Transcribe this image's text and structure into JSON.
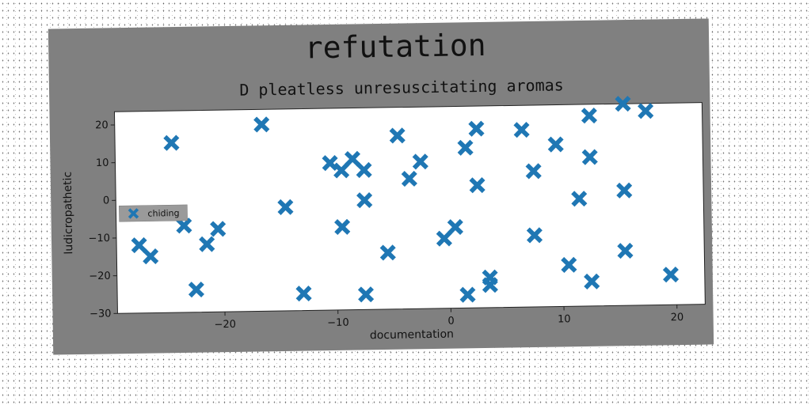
{
  "chart_data": {
    "type": "scatter",
    "title": "refutation",
    "subtitle": "D pleatless unresuscitating aromas",
    "xlabel": "documentation",
    "ylabel": "ludicropathetic",
    "xlim": [
      -29.5,
      22.5
    ],
    "ylim": [
      -30,
      23.5
    ],
    "x_ticks": [
      -20,
      -10,
      0,
      10,
      20
    ],
    "y_ticks": [
      -30,
      -20,
      -10,
      0,
      10,
      20
    ],
    "grid": false,
    "legend_position": "center-left",
    "marker": "X",
    "color": "#1f77b4",
    "series": [
      {
        "name": "chiding",
        "points": [
          [
            -27.5,
            -12
          ],
          [
            -26.5,
            -15
          ],
          [
            -24.5,
            15
          ],
          [
            -23.5,
            -7
          ],
          [
            -22.5,
            -24
          ],
          [
            -21.5,
            -12
          ],
          [
            -20.5,
            -8
          ],
          [
            -16.5,
            19.5
          ],
          [
            -14.5,
            -2.5
          ],
          [
            -13,
            -25.5
          ],
          [
            -10.5,
            9
          ],
          [
            -9.5,
            7
          ],
          [
            -9.5,
            -8
          ],
          [
            -8.5,
            10
          ],
          [
            -7.5,
            7
          ],
          [
            -7.5,
            -1
          ],
          [
            -7.5,
            -26
          ],
          [
            -5.5,
            -15
          ],
          [
            -4.5,
            16
          ],
          [
            -3.5,
            4.5
          ],
          [
            -2.5,
            9
          ],
          [
            -0.5,
            -11.5
          ],
          [
            0.5,
            -8.5
          ],
          [
            1.5,
            12.5
          ],
          [
            1.5,
            -26.5
          ],
          [
            2.5,
            17.5
          ],
          [
            2.5,
            2.5
          ],
          [
            3.5,
            -22
          ],
          [
            3.5,
            -24
          ],
          [
            6.5,
            17
          ],
          [
            7.5,
            6
          ],
          [
            7.5,
            -11
          ],
          [
            9.5,
            13
          ],
          [
            10.5,
            -19
          ],
          [
            11.5,
            -1.5
          ],
          [
            12.5,
            20.5
          ],
          [
            12.5,
            9.5
          ],
          [
            12.5,
            -23.5
          ],
          [
            15.5,
            23.5
          ],
          [
            15.5,
            0.5
          ],
          [
            15.5,
            -15.5
          ],
          [
            17.5,
            21.5
          ],
          [
            19.5,
            -22
          ]
        ]
      }
    ]
  }
}
